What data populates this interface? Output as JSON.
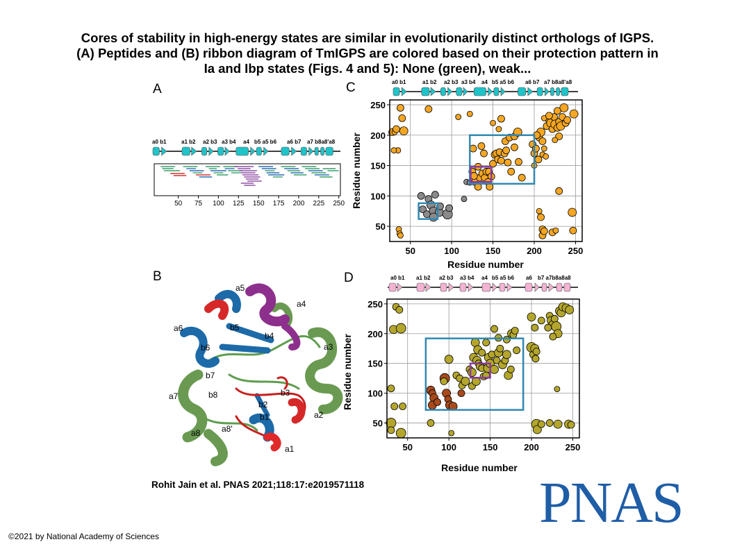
{
  "title_lines": [
    "Cores of stability in high-energy states are similar in evolutionarily distinct orthologs of IGPS.",
    "(A) Peptides and (B) ribbon diagram of TmIGPS are colored based on their protection pattern in",
    "Ia and Ibp states (Figs. 4 and 5): None (green), weak..."
  ],
  "panels": {
    "a": "A",
    "b": "B",
    "c": "C",
    "d": "D"
  },
  "citation": "Rohit Jain et al. PNAS 2021;118:17:e2019571118",
  "copyright": "©2021 by National Academy of Sciences",
  "logo": "PNAS",
  "colors": {
    "teal": "#1fc3c8",
    "pink": "#f4b3d3",
    "orange": "#f5a623",
    "olive": "#b4a62c",
    "brown": "#a84a1c",
    "gray": "#8a8a8a",
    "box_blue": "#2f88b2",
    "box_purple": "#8a3c9a",
    "green": "#3a9d6a",
    "red": "#d13434",
    "purple": "#8d4fa3",
    "blue": "#2b6fb0"
  },
  "panel_a": {
    "ss_labels": [
      "a0 b1",
      "a1 b2",
      "a2 b3",
      "a3 b4",
      "a4",
      "b5 a5 b6",
      "a6 b7",
      "a7 b8a8'a8"
    ],
    "xticks": [
      "50",
      "75",
      "100",
      "125",
      "150",
      "175",
      "200",
      "225",
      "250"
    ]
  },
  "panel_b": {
    "labels": [
      "a5",
      "a4",
      "a6",
      "b5",
      "b4",
      "a3",
      "b6",
      "b7",
      "a7",
      "b8",
      "b2",
      "b3",
      "b1",
      "a2",
      "a8",
      "a8'",
      "a1"
    ]
  },
  "panel_c": {
    "ss_labels": [
      "a0 b1",
      "a1 b2",
      "a2 b3",
      "a3 b4",
      "a4",
      "b5 a5 b6",
      "a6 b7",
      "a7 b8a8'a8"
    ],
    "xlabel": "Residue number",
    "ylabel": "Residue number",
    "xticks": [
      "50",
      "100",
      "150",
      "200",
      "250"
    ],
    "yticks": [
      "50",
      "100",
      "150",
      "200",
      "250"
    ]
  },
  "panel_d": {
    "ss_labels": [
      "a0 b1",
      "a1 b2",
      "a2 b3",
      "a3 b4",
      "a4",
      "b5 a5 b6",
      "a6",
      "b7 a7b8a8a8"
    ],
    "xlabel": "Residue number",
    "ylabel": "Residue number",
    "xticks": [
      "50",
      "100",
      "150",
      "200",
      "250"
    ],
    "yticks": [
      "50",
      "100",
      "150",
      "200",
      "250"
    ]
  }
}
